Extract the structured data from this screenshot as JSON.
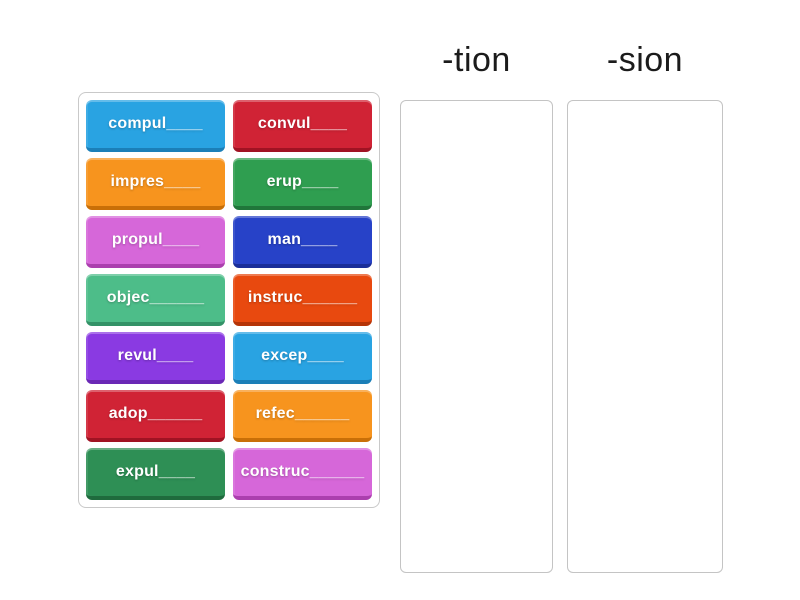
{
  "activity": {
    "type": "group-sort",
    "background_color": "#ffffff",
    "tray_border_color": "#c9c9c9",
    "zone_border_color": "#c4c4c4"
  },
  "categories": [
    {
      "id": "tion",
      "label": "-tion"
    },
    {
      "id": "sion",
      "label": "-sion"
    }
  ],
  "tiles": [
    {
      "label": "compul____",
      "color": "#29a3e2",
      "shade": "#1b7fb8"
    },
    {
      "label": "convul____",
      "color": "#d02335",
      "shade": "#a01323"
    },
    {
      "label": "impres____",
      "color": "#f7941e",
      "shade": "#c96f07"
    },
    {
      "label": "erup____",
      "color": "#2f9e50",
      "shade": "#20763a"
    },
    {
      "label": "propul____",
      "color": "#d667d9",
      "shade": "#ab3fae"
    },
    {
      "label": "man____",
      "color": "#2742c8",
      "shade": "#1a2e99"
    },
    {
      "label": "objec______",
      "color": "#4dbd89",
      "shade": "#339267"
    },
    {
      "label": "instruc______",
      "color": "#e8490f",
      "shade": "#b53407"
    },
    {
      "label": "revul____",
      "color": "#8a3ae2",
      "shade": "#6a28b5"
    },
    {
      "label": "excep____",
      "color": "#29a3e2",
      "shade": "#1b7fb8"
    },
    {
      "label": "adop______",
      "color": "#d02335",
      "shade": "#a01323"
    },
    {
      "label": "refec______",
      "color": "#f7941e",
      "shade": "#c96f07"
    },
    {
      "label": "expul____",
      "color": "#2e8f55",
      "shade": "#1f6b3d"
    },
    {
      "label": "construc______",
      "color": "#d667d9",
      "shade": "#ab3fae"
    }
  ]
}
